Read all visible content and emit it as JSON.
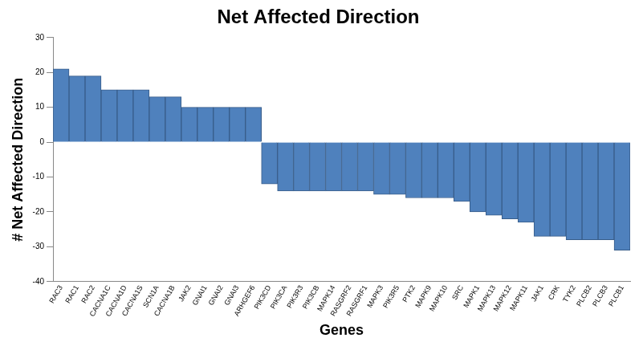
{
  "chart_data": {
    "type": "bar",
    "title": "Net Affected Direction",
    "x_label": "Genes",
    "y_label": "# Net Affected Direction",
    "categories": [
      "RAC3",
      "RAC1",
      "RAC2",
      "CACNA1C",
      "CACNA1D",
      "CACNA1S",
      "SCN1A",
      "CACNA1B",
      "JAK2",
      "GNAI1",
      "GNAI2",
      "GNAI3",
      "ARHGEF6",
      "PIK3CD",
      "PIK3CA",
      "PIK3R3",
      "PIK3CB",
      "MAPK14",
      "RASGRF2",
      "RASGRF1",
      "MAPK3",
      "PIK3R5",
      "PTK2",
      "MAPK9",
      "MAPK10",
      "SRC",
      "MAPK1",
      "MAPK13",
      "MAPK12",
      "MAPK11",
      "JAK1",
      "CRK",
      "TYK2",
      "PLCB2",
      "PLCB3",
      "PLCB1"
    ],
    "values": [
      21,
      19,
      19,
      15,
      15,
      15,
      13,
      13,
      10,
      10,
      10,
      10,
      10,
      -12,
      -14,
      -14,
      -14,
      -14,
      -14,
      -14,
      -15,
      -15,
      -16,
      -16,
      -16,
      -17,
      -20,
      -21,
      -22,
      -23,
      -27,
      -27,
      -28,
      -28,
      -28,
      -31
    ],
    "color": "#4f81bd",
    "ylim": [
      -40,
      30
    ],
    "yticks": [
      -40,
      -30,
      -20,
      -10,
      0,
      10,
      20,
      30
    ],
    "grid": false
  }
}
